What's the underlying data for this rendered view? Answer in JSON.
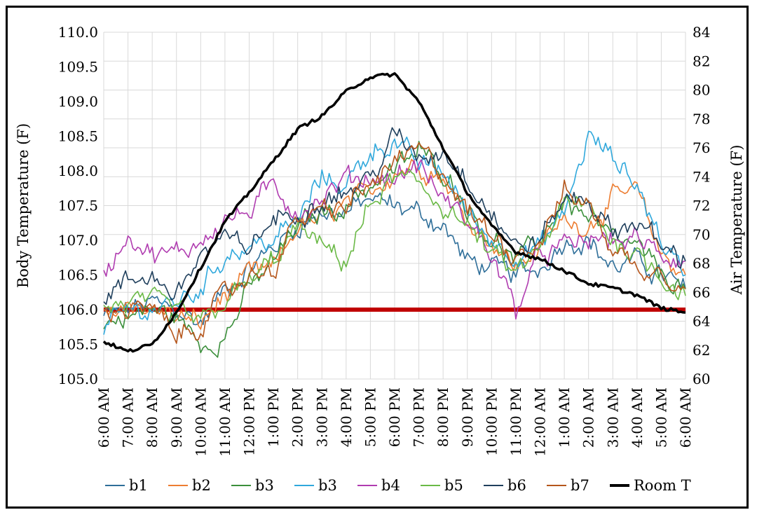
{
  "chart_data": {
    "type": "line",
    "title": "",
    "ylabel_left": "Body Temperature (F)",
    "ylabel_right": "Air Temperature (F)",
    "xlabel": "",
    "ylim_left": [
      105.0,
      110.0
    ],
    "ylim_right": [
      60,
      84
    ],
    "y_ticks_left": [
      "105.0",
      "105.5",
      "106.0",
      "106.5",
      "107.0",
      "107.5",
      "108.0",
      "108.5",
      "109.0",
      "109.5",
      "110.0"
    ],
    "y_ticks_right": [
      "60",
      "62",
      "64",
      "66",
      "68",
      "70",
      "72",
      "74",
      "76",
      "78",
      "80",
      "82",
      "84"
    ],
    "x_ticks": [
      "6:00 AM",
      "7:00 AM",
      "8:00 AM",
      "9:00 AM",
      "10:00 AM",
      "11:00 AM",
      "12:00 PM",
      "1:00 PM",
      "2:00 PM",
      "3:00 PM",
      "4:00 PM",
      "5:00 PM",
      "6:00 PM",
      "7:00 PM",
      "8:00 PM",
      "9:00 PM",
      "10:00 PM",
      "11:00 PM",
      "12:00 AM",
      "1:00 AM",
      "2:00 AM",
      "3:00 AM",
      "4:00 AM",
      "5:00 AM",
      "6:00 AM"
    ],
    "grid": true,
    "legend_position": "bottom",
    "reference_line": {
      "axis": "left",
      "value": 106.0,
      "color": "#c00000"
    },
    "series": [
      {
        "name": "b1",
        "axis": "left",
        "color": "#2e6e99",
        "values": [
          105.9,
          106.0,
          106.1,
          106.0,
          105.8,
          106.3,
          106.6,
          106.9,
          107.2,
          107.4,
          107.4,
          107.6,
          107.5,
          107.4,
          107.2,
          106.7,
          106.6,
          106.5,
          106.6,
          107.0,
          107.0,
          106.6,
          106.7,
          106.5,
          106.3
        ]
      },
      {
        "name": "b2",
        "axis": "left",
        "color": "#ed7d31",
        "values": [
          105.9,
          106.1,
          106.0,
          105.9,
          105.8,
          106.2,
          106.5,
          106.6,
          107.2,
          107.3,
          107.5,
          107.7,
          108.0,
          108.1,
          107.9,
          107.3,
          107.0,
          106.6,
          106.9,
          107.3,
          107.2,
          107.6,
          107.7,
          106.8,
          106.5
        ]
      },
      {
        "name": "b3",
        "axis": "left",
        "color": "#3b8f3b",
        "values": [
          105.8,
          105.9,
          106.0,
          105.9,
          105.5,
          105.6,
          106.3,
          106.7,
          107.2,
          107.4,
          107.5,
          107.8,
          108.0,
          108.3,
          108.0,
          107.5,
          107.0,
          106.7,
          107.0,
          107.6,
          107.3,
          107.0,
          106.9,
          106.5,
          106.3
        ]
      },
      {
        "name": "b3",
        "axis": "left",
        "color": "#2fa8dc",
        "values": [
          105.7,
          106.0,
          106.0,
          106.1,
          106.3,
          106.8,
          106.9,
          107.0,
          107.3,
          107.9,
          107.8,
          108.3,
          108.4,
          108.1,
          108.0,
          107.4,
          107.0,
          106.8,
          106.9,
          107.4,
          108.5,
          108.2,
          107.8,
          107.0,
          106.5
        ]
      },
      {
        "name": "b4",
        "axis": "left",
        "color": "#b03cb0",
        "values": [
          106.5,
          107.1,
          106.8,
          106.8,
          107.0,
          107.3,
          107.4,
          107.8,
          107.4,
          107.6,
          107.9,
          107.9,
          107.9,
          108.1,
          107.6,
          107.3,
          106.8,
          106.0,
          106.8,
          106.9,
          107.0,
          107.0,
          107.0,
          106.8,
          106.7
        ]
      },
      {
        "name": "b5",
        "axis": "left",
        "color": "#6ab946",
        "values": [
          106.0,
          106.1,
          106.1,
          106.0,
          105.8,
          106.1,
          106.4,
          106.7,
          107.2,
          106.9,
          106.7,
          107.5,
          107.9,
          107.8,
          107.5,
          107.2,
          106.8,
          106.5,
          106.9,
          107.5,
          107.5,
          107.0,
          106.8,
          106.5,
          106.2
        ]
      },
      {
        "name": "b6",
        "axis": "left",
        "color": "#1f3f5c",
        "values": [
          106.2,
          106.4,
          106.5,
          106.2,
          106.8,
          107.0,
          106.9,
          107.3,
          107.4,
          107.6,
          107.7,
          107.9,
          108.5,
          108.2,
          108.3,
          107.9,
          107.4,
          106.9,
          107.0,
          107.6,
          107.6,
          107.1,
          107.3,
          106.9,
          106.7
        ]
      },
      {
        "name": "b7",
        "axis": "left",
        "color": "#b5561c",
        "values": [
          106.0,
          106.0,
          106.0,
          105.6,
          105.8,
          106.2,
          106.5,
          106.6,
          107.3,
          107.4,
          107.5,
          107.8,
          108.1,
          108.3,
          108.0,
          107.4,
          107.1,
          106.8,
          107.0,
          107.7,
          107.5,
          106.9,
          106.6,
          106.6,
          106.3
        ]
      },
      {
        "name": "Room T",
        "axis": "right",
        "color": "#000000",
        "values": [
          62.6,
          61.9,
          62.4,
          64.6,
          67.7,
          70.9,
          72.9,
          75.1,
          77.3,
          78.2,
          79.9,
          80.9,
          81.1,
          79.2,
          76.0,
          72.9,
          70.6,
          68.8,
          68.3,
          67.5,
          66.6,
          66.3,
          65.8,
          64.9,
          64.6
        ]
      }
    ]
  }
}
